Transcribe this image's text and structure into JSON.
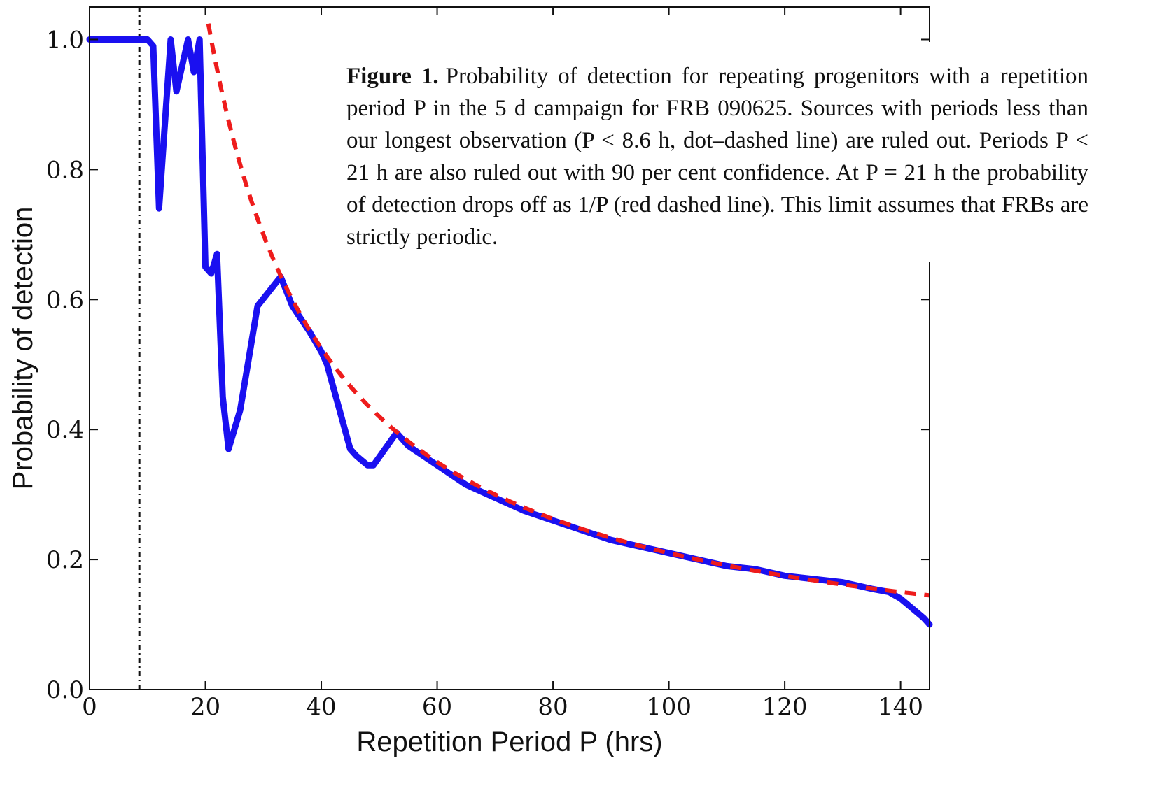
{
  "chart_data": [
    {
      "type": "line",
      "xlabel": "Repetition Period P (hrs)",
      "ylabel": "Probability of detection",
      "xlim": [
        0,
        145
      ],
      "ylim": [
        0.0,
        1.05
      ],
      "x_ticks": [
        "0",
        "20",
        "40",
        "60",
        "80",
        "100",
        "120",
        "140"
      ],
      "y_ticks": [
        "0.0",
        "0.2",
        "0.4",
        "0.6",
        "0.8",
        "1.0"
      ],
      "grid": false,
      "series": [
        {
          "style": "solid",
          "color": "#1a10f0",
          "points": [
            [
              0,
              1.0
            ],
            [
              10,
              1.0
            ],
            [
              11,
              0.99
            ],
            [
              12,
              0.74
            ],
            [
              14,
              1.0
            ],
            [
              15,
              0.92
            ],
            [
              17,
              1.0
            ],
            [
              18,
              0.95
            ],
            [
              19,
              1.0
            ],
            [
              20,
              0.65
            ],
            [
              21,
              0.64
            ],
            [
              22,
              0.67
            ],
            [
              23,
              0.45
            ],
            [
              24,
              0.37
            ],
            [
              26,
              0.43
            ],
            [
              29,
              0.59
            ],
            [
              33,
              0.635
            ],
            [
              35,
              0.59
            ],
            [
              38,
              0.55
            ],
            [
              40,
              0.52
            ],
            [
              41,
              0.5
            ],
            [
              45,
              0.37
            ],
            [
              46,
              0.36
            ],
            [
              48,
              0.345
            ],
            [
              49,
              0.345
            ],
            [
              53,
              0.395
            ],
            [
              55,
              0.375
            ],
            [
              60,
              0.345
            ],
            [
              65,
              0.315
            ],
            [
              70,
              0.295
            ],
            [
              75,
              0.275
            ],
            [
              80,
              0.26
            ],
            [
              85,
              0.245
            ],
            [
              90,
              0.23
            ],
            [
              95,
              0.22
            ],
            [
              100,
              0.21
            ],
            [
              105,
              0.2
            ],
            [
              110,
              0.19
            ],
            [
              115,
              0.185
            ],
            [
              120,
              0.175
            ],
            [
              125,
              0.17
            ],
            [
              130,
              0.165
            ],
            [
              135,
              0.155
            ],
            [
              138,
              0.15
            ],
            [
              140,
              0.14
            ],
            [
              142,
              0.125
            ],
            [
              144,
              0.11
            ],
            [
              145,
              0.1
            ]
          ]
        },
        {
          "style": "dashed",
          "color": "#ee1c1c",
          "formula": "P(detect) = 21 / P for P >= 21",
          "x_start": 20.5,
          "x_end": 145
        },
        {
          "style": "dot-dashed",
          "color": "#111111",
          "vertical_x": 8.6
        }
      ]
    }
  ],
  "caption": {
    "label": "Figure 1.",
    "text": "Probability of detection for repeating progenitors with a repetition period P in the 5 d campaign for FRB 090625. Sources with periods less than our longest observation (P < 8.6 h, dot–dashed line) are ruled out. Periods P < 21 h are also ruled out with 90 per cent confidence. At P = 21 h the probability of detection drops off as 1/P (red dashed line). This limit assumes that FRBs are strictly periodic."
  }
}
